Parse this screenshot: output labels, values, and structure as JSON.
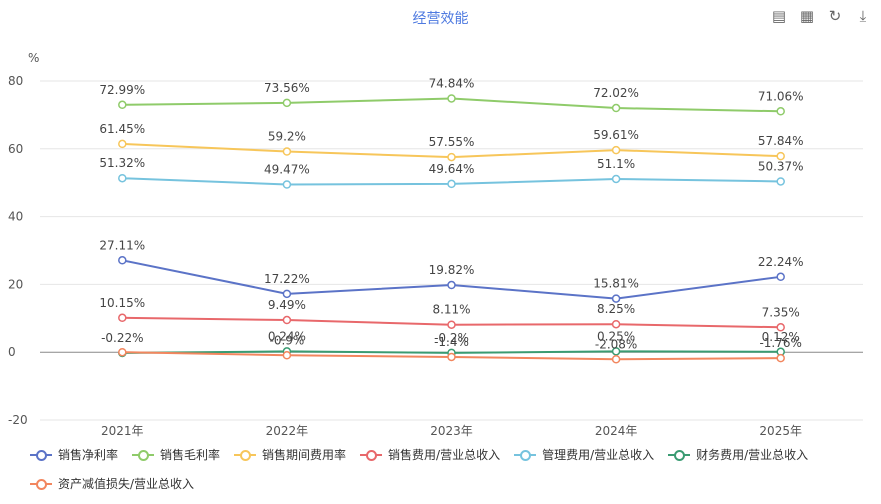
{
  "chart_data": {
    "type": "line",
    "title": "经营效能",
    "ylabel": "%",
    "ylim": [
      -20,
      80
    ],
    "yticks": [
      -20,
      0,
      20,
      40,
      60,
      80
    ],
    "categories": [
      "2021年",
      "2022年",
      "2023年",
      "2024年",
      "2025年"
    ],
    "grid": true,
    "legend": "bottom",
    "series": [
      {
        "name": "销售净利率",
        "color": "#5b73c7",
        "values": [
          27.11,
          17.22,
          19.82,
          15.81,
          22.24
        ],
        "labels": [
          "27.11%",
          "17.22%",
          "19.82%",
          "15.81%",
          "22.24%"
        ]
      },
      {
        "name": "销售毛利率",
        "color": "#8fcb6a",
        "values": [
          72.99,
          73.56,
          74.84,
          72.02,
          71.06
        ],
        "labels": [
          "72.99%",
          "73.56%",
          "74.84%",
          "72.02%",
          "71.06%"
        ]
      },
      {
        "name": "销售期间费用率",
        "color": "#f7c65a",
        "values": [
          61.45,
          59.2,
          57.55,
          59.61,
          57.84
        ],
        "labels": [
          "61.45%",
          "59.2%",
          "57.55%",
          "59.61%",
          "57.84%"
        ]
      },
      {
        "name": "销售费用/营业总收入",
        "color": "#e8686b",
        "values": [
          10.15,
          9.49,
          8.11,
          8.25,
          7.35
        ],
        "labels": [
          "10.15%",
          "9.49%",
          "8.11%",
          "8.25%",
          "7.35%"
        ]
      },
      {
        "name": "管理费用/营业总收入",
        "color": "#76c3de",
        "values": [
          51.32,
          49.47,
          49.64,
          51.1,
          50.37
        ],
        "labels": [
          "51.32%",
          "49.47%",
          "49.64%",
          "51.1%",
          "50.37%"
        ]
      },
      {
        "name": "财务费用/营业总收入",
        "color": "#3a9b72",
        "values": [
          -0.22,
          0.24,
          -0.2,
          0.25,
          0.12
        ],
        "labels": [
          "-0.22%",
          "0.24%",
          "-0.2%",
          "0.25%",
          "0.12%"
        ]
      },
      {
        "name": "资产减值损失/营业总收入",
        "color": "#f2865e",
        "values": [
          0,
          -0.9,
          -1.4,
          -2.08,
          -1.76
        ],
        "labels": [
          "",
          "-0.9%",
          "-1.4%",
          "-2.08%",
          "-1.76%"
        ]
      }
    ]
  },
  "toolbar": [
    {
      "name": "data-view-icon",
      "glyph": "▤"
    },
    {
      "name": "table-view-icon",
      "glyph": "▦"
    },
    {
      "name": "refresh-icon",
      "glyph": "↻"
    },
    {
      "name": "download-icon",
      "glyph": "⤓"
    }
  ]
}
